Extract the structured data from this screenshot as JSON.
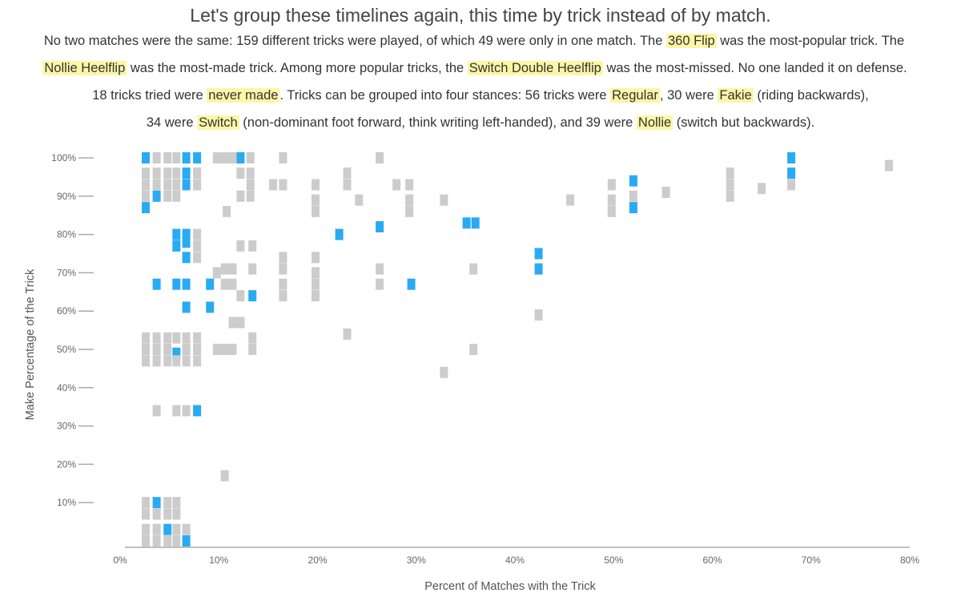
{
  "heading": "Let's group these timelines again, this time by trick instead of by match.",
  "intro": {
    "l1_a": "No two matches were the same: 159 different tricks were played, of which 49 were only in one match. The ",
    "l1_h": "360 Flip",
    "l1_b": " was the most-popular trick. The",
    "l2_h1": "Nollie Heelflip",
    "l2_a": " was the most-made trick. Among more popular tricks, the ",
    "l2_h2": "Switch Double Heelflip",
    "l2_b": " was the most-missed. No one landed it on defense.",
    "l3_a": "18 tricks tried were ",
    "l3_h1": "never made",
    "l3_b": ". Tricks can be grouped into four stances: 56 tricks were ",
    "l3_h2": "Regular",
    "l3_c": ", 30 were ",
    "l3_h3": "Fakie",
    "l3_d": " (riding backwards),",
    "l4_a": "34 were ",
    "l4_h1": "Switch",
    "l4_b": " (non-dominant foot forward, think writing left-handed), and 39 were ",
    "l4_h2": "Nollie",
    "l4_c": " (switch but backwards)."
  },
  "chart_data": {
    "type": "scatter",
    "xlabel": "Percent of Matches with the Trick",
    "ylabel": "Make Percentage of the Trick",
    "xlim": [
      0,
      80
    ],
    "ylim": [
      0,
      100
    ],
    "x_ticks": [
      "0%",
      "10%",
      "20%",
      "30%",
      "40%",
      "50%",
      "60%",
      "70%",
      "80%"
    ],
    "y_ticks": [
      "10%",
      "20%",
      "30%",
      "40%",
      "50%",
      "60%",
      "70%",
      "80%",
      "90%",
      "100%"
    ],
    "colors": {
      "highlighted": "#29aaf4",
      "other": "#cccccc",
      "axis": "#aaaaaa"
    },
    "series": [
      {
        "name": "highlighted",
        "points": [
          [
            2.6,
            100
          ],
          [
            2.6,
            87
          ],
          [
            3.7,
            10
          ],
          [
            3.7,
            67
          ],
          [
            3.7,
            90
          ],
          [
            4.8,
            3
          ],
          [
            5.7,
            49
          ],
          [
            6.7,
            100
          ],
          [
            6.7,
            96
          ],
          [
            6.7,
            93
          ],
          [
            6.7,
            61
          ],
          [
            6.7,
            67
          ],
          [
            6.7,
            74
          ],
          [
            6.7,
            78
          ],
          [
            6.7,
            80
          ],
          [
            6.7,
            0
          ],
          [
            5.7,
            67
          ],
          [
            5.7,
            80
          ],
          [
            5.7,
            77
          ],
          [
            7.8,
            100
          ],
          [
            7.8,
            34
          ],
          [
            9.1,
            67
          ],
          [
            9.1,
            61
          ],
          [
            12.2,
            100
          ],
          [
            13.4,
            64
          ],
          [
            22.2,
            80
          ],
          [
            26.3,
            82
          ],
          [
            29.5,
            67
          ],
          [
            35.1,
            83
          ],
          [
            36.0,
            83
          ],
          [
            42.4,
            75
          ],
          [
            42.4,
            71
          ],
          [
            52.0,
            94
          ],
          [
            52.0,
            87
          ],
          [
            68.0,
            100
          ],
          [
            68.0,
            96
          ]
        ]
      },
      {
        "name": "other",
        "points": [
          [
            2.6,
            96
          ],
          [
            2.6,
            93
          ],
          [
            2.6,
            90
          ],
          [
            3.7,
            100
          ],
          [
            3.7,
            96
          ],
          [
            3.7,
            93
          ],
          [
            4.8,
            100
          ],
          [
            4.8,
            96
          ],
          [
            4.8,
            93
          ],
          [
            4.8,
            90
          ],
          [
            5.7,
            100
          ],
          [
            5.7,
            96
          ],
          [
            5.7,
            93
          ],
          [
            5.7,
            90
          ],
          [
            7.8,
            96
          ],
          [
            7.8,
            93
          ],
          [
            9.8,
            100
          ],
          [
            10.6,
            100
          ],
          [
            11.4,
            100
          ],
          [
            12.2,
            96
          ],
          [
            13.2,
            100
          ],
          [
            13.2,
            96
          ],
          [
            13.2,
            93
          ],
          [
            13.2,
            90
          ],
          [
            12.2,
            90
          ],
          [
            15.5,
            93
          ],
          [
            16.5,
            93
          ],
          [
            16.5,
            100
          ],
          [
            10.8,
            86
          ],
          [
            19.8,
            93
          ],
          [
            19.8,
            89
          ],
          [
            19.8,
            86
          ],
          [
            23.0,
            96
          ],
          [
            23.0,
            93
          ],
          [
            24.2,
            89
          ],
          [
            26.3,
            100
          ],
          [
            28.0,
            93
          ],
          [
            29.3,
            93
          ],
          [
            29.3,
            89
          ],
          [
            29.3,
            86
          ],
          [
            32.8,
            89
          ],
          [
            45.6,
            89
          ],
          [
            49.8,
            93
          ],
          [
            49.8,
            89
          ],
          [
            49.8,
            86
          ],
          [
            52.0,
            90
          ],
          [
            55.3,
            91
          ],
          [
            61.8,
            96
          ],
          [
            61.8,
            93
          ],
          [
            61.8,
            90
          ],
          [
            65.0,
            92
          ],
          [
            68.0,
            93
          ],
          [
            77.9,
            98
          ],
          [
            2.6,
            53
          ],
          [
            2.6,
            50
          ],
          [
            2.6,
            47
          ],
          [
            3.7,
            53
          ],
          [
            3.7,
            50
          ],
          [
            3.7,
            47
          ],
          [
            4.8,
            53
          ],
          [
            4.8,
            50
          ],
          [
            4.8,
            47
          ],
          [
            5.7,
            53
          ],
          [
            5.7,
            47
          ],
          [
            6.7,
            53
          ],
          [
            6.7,
            50
          ],
          [
            6.7,
            47
          ],
          [
            7.8,
            53
          ],
          [
            7.8,
            50
          ],
          [
            7.8,
            47
          ],
          [
            9.8,
            50
          ],
          [
            10.6,
            50
          ],
          [
            11.4,
            50
          ],
          [
            13.4,
            53
          ],
          [
            13.4,
            50
          ],
          [
            23.0,
            54
          ],
          [
            35.8,
            50
          ],
          [
            32.8,
            44
          ],
          [
            7.8,
            80
          ],
          [
            7.8,
            77
          ],
          [
            7.8,
            74
          ],
          [
            10.6,
            71
          ],
          [
            11.4,
            71
          ],
          [
            9.8,
            70
          ],
          [
            10.6,
            67
          ],
          [
            11.4,
            67
          ],
          [
            12.2,
            77
          ],
          [
            13.4,
            77
          ],
          [
            13.4,
            71
          ],
          [
            12.2,
            64
          ],
          [
            11.4,
            57
          ],
          [
            12.2,
            57
          ],
          [
            16.5,
            74
          ],
          [
            16.5,
            71
          ],
          [
            16.5,
            67
          ],
          [
            16.5,
            64
          ],
          [
            19.8,
            74
          ],
          [
            19.8,
            70
          ],
          [
            19.8,
            67
          ],
          [
            19.8,
            64
          ],
          [
            26.3,
            71
          ],
          [
            26.3,
            67
          ],
          [
            35.8,
            71
          ],
          [
            42.4,
            59
          ],
          [
            3.7,
            34
          ],
          [
            5.7,
            34
          ],
          [
            6.7,
            34
          ],
          [
            10.6,
            17
          ],
          [
            2.6,
            10
          ],
          [
            2.6,
            7
          ],
          [
            2.6,
            3
          ],
          [
            2.6,
            0
          ],
          [
            3.7,
            7
          ],
          [
            3.7,
            3
          ],
          [
            3.7,
            0
          ],
          [
            4.8,
            10
          ],
          [
            4.8,
            7
          ],
          [
            4.8,
            0
          ],
          [
            5.7,
            10
          ],
          [
            5.7,
            7
          ],
          [
            5.7,
            3
          ],
          [
            5.7,
            0
          ],
          [
            6.7,
            3
          ]
        ]
      }
    ]
  }
}
